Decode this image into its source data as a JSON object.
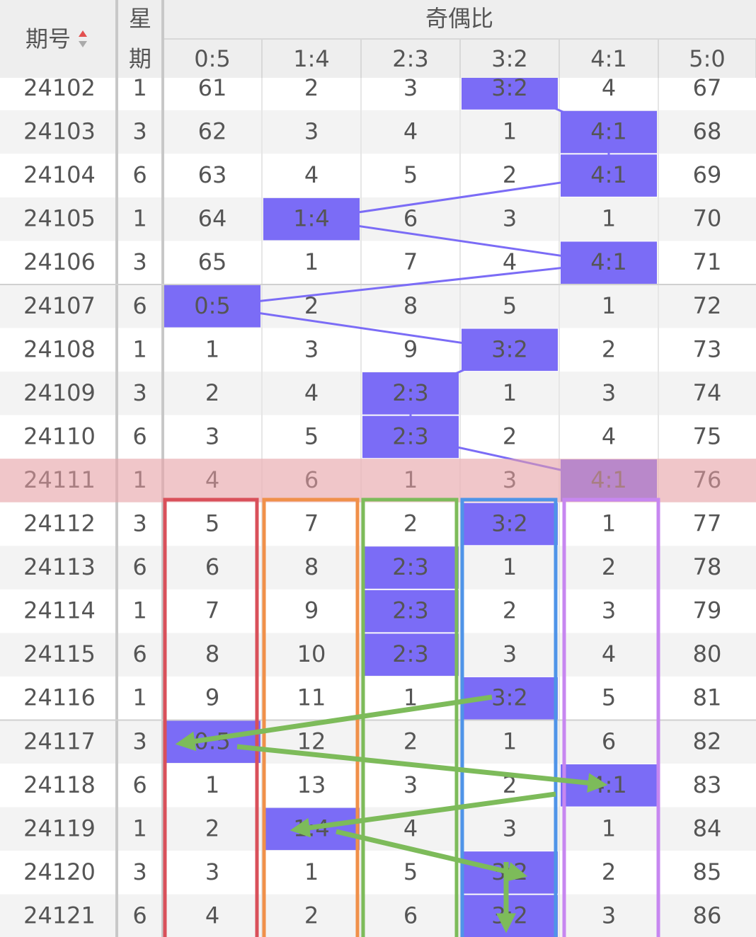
{
  "header": {
    "issue": "期号",
    "weekday": [
      "星",
      "期"
    ],
    "group": "奇偶比",
    "columns": [
      "0:5",
      "1:4",
      "2:3",
      "3:2",
      "4:1",
      "5:0"
    ]
  },
  "rows": [
    [
      24102,
      1,
      61,
      2,
      3,
      "3:2",
      4,
      67
    ],
    [
      24103,
      3,
      62,
      3,
      4,
      1,
      "4:1",
      68
    ],
    [
      24104,
      6,
      63,
      4,
      5,
      2,
      "4:1",
      69
    ],
    [
      24105,
      1,
      64,
      "1:4",
      6,
      3,
      1,
      70
    ],
    [
      24106,
      3,
      65,
      1,
      7,
      4,
      "4:1",
      71
    ],
    [
      24107,
      6,
      "0:5",
      2,
      8,
      5,
      1,
      72
    ],
    [
      24108,
      1,
      1,
      3,
      9,
      "3:2",
      2,
      73
    ],
    [
      24109,
      3,
      2,
      4,
      "2:3",
      1,
      3,
      74
    ],
    [
      24110,
      6,
      3,
      5,
      "2:3",
      2,
      4,
      75
    ],
    [
      24111,
      1,
      4,
      6,
      1,
      3,
      "4:1",
      76
    ],
    [
      24112,
      3,
      5,
      7,
      2,
      "3:2",
      1,
      77
    ],
    [
      24113,
      6,
      6,
      8,
      "2:3",
      1,
      2,
      78
    ],
    [
      24114,
      1,
      7,
      9,
      "2:3",
      2,
      3,
      79
    ],
    [
      24115,
      6,
      8,
      10,
      "2:3",
      3,
      4,
      80
    ],
    [
      24116,
      1,
      9,
      11,
      1,
      "3:2",
      5,
      81
    ],
    [
      24117,
      3,
      "0:5",
      12,
      2,
      1,
      6,
      82
    ],
    [
      24118,
      6,
      1,
      13,
      3,
      2,
      "4:1",
      83
    ],
    [
      24119,
      1,
      2,
      "1:4",
      4,
      3,
      1,
      84
    ],
    [
      24120,
      3,
      3,
      1,
      5,
      "3:2",
      2,
      85
    ],
    [
      24121,
      6,
      4,
      2,
      6,
      "3:2",
      3,
      86
    ]
  ]
}
